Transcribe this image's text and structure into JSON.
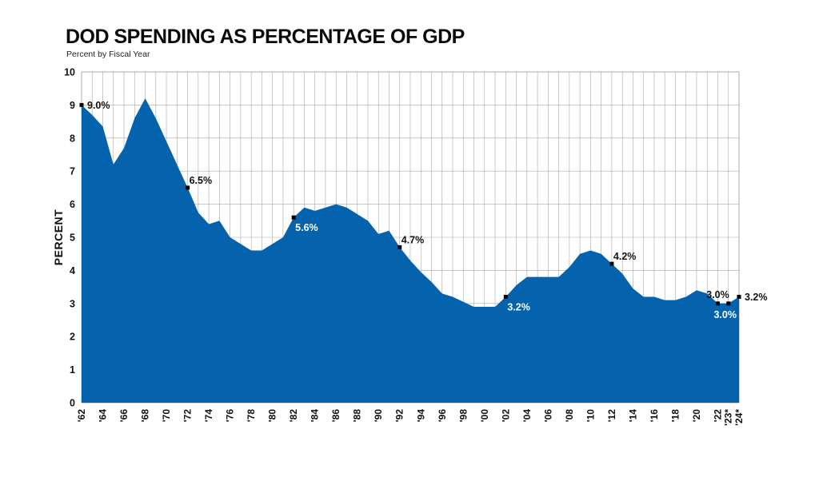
{
  "title": "DOD SPENDING AS PERCENTAGE OF GDP",
  "subtitle": "Percent by Fiscal Year",
  "chart_data": {
    "type": "area",
    "ylabel": "PERCENT",
    "xlabel": "",
    "ylim": [
      0,
      10
    ],
    "yticks": [
      0,
      1,
      2,
      3,
      4,
      5,
      6,
      7,
      8,
      9,
      10
    ],
    "grid": true,
    "fill_color": "#0563ad",
    "x": [
      1962,
      1963,
      1964,
      1965,
      1966,
      1967,
      1968,
      1969,
      1970,
      1971,
      1972,
      1973,
      1974,
      1975,
      1976,
      1977,
      1978,
      1979,
      1980,
      1981,
      1982,
      1983,
      1984,
      1985,
      1986,
      1987,
      1988,
      1989,
      1990,
      1991,
      1992,
      1993,
      1994,
      1995,
      1996,
      1997,
      1998,
      1999,
      2000,
      2001,
      2002,
      2003,
      2004,
      2005,
      2006,
      2007,
      2008,
      2009,
      2010,
      2011,
      2012,
      2013,
      2014,
      2015,
      2016,
      2017,
      2018,
      2019,
      2020,
      2021,
      2022,
      2023,
      2024
    ],
    "values": [
      9.0,
      8.7,
      8.35,
      7.2,
      7.7,
      8.6,
      9.2,
      8.6,
      7.9,
      7.2,
      6.5,
      5.75,
      5.4,
      5.5,
      5.0,
      4.8,
      4.6,
      4.6,
      4.8,
      5.0,
      5.6,
      5.9,
      5.8,
      5.9,
      6.0,
      5.9,
      5.7,
      5.5,
      5.1,
      5.2,
      4.7,
      4.3,
      3.95,
      3.65,
      3.3,
      3.2,
      3.05,
      2.9,
      2.9,
      2.9,
      3.2,
      3.55,
      3.8,
      3.8,
      3.8,
      3.8,
      4.1,
      4.5,
      4.6,
      4.5,
      4.2,
      3.9,
      3.45,
      3.2,
      3.2,
      3.1,
      3.1,
      3.2,
      3.4,
      3.3,
      3.0,
      3.0,
      3.2
    ],
    "xtick_labels": [
      {
        "x": 1962,
        "label": "'62"
      },
      {
        "x": 1964,
        "label": "'64"
      },
      {
        "x": 1966,
        "label": "'66"
      },
      {
        "x": 1968,
        "label": "'68"
      },
      {
        "x": 1970,
        "label": "'70"
      },
      {
        "x": 1972,
        "label": "'72"
      },
      {
        "x": 1974,
        "label": "'74"
      },
      {
        "x": 1976,
        "label": "'76"
      },
      {
        "x": 1978,
        "label": "'78"
      },
      {
        "x": 1980,
        "label": "'80"
      },
      {
        "x": 1982,
        "label": "'82"
      },
      {
        "x": 1984,
        "label": "'84"
      },
      {
        "x": 1986,
        "label": "'86"
      },
      {
        "x": 1988,
        "label": "'88"
      },
      {
        "x": 1990,
        "label": "'90"
      },
      {
        "x": 1992,
        "label": "'92"
      },
      {
        "x": 1994,
        "label": "'94"
      },
      {
        "x": 1996,
        "label": "'96"
      },
      {
        "x": 1998,
        "label": "'98"
      },
      {
        "x": 2000,
        "label": "'00"
      },
      {
        "x": 2002,
        "label": "'02"
      },
      {
        "x": 2004,
        "label": "'04"
      },
      {
        "x": 2006,
        "label": "'06"
      },
      {
        "x": 2008,
        "label": "'08"
      },
      {
        "x": 2010,
        "label": "'10"
      },
      {
        "x": 2012,
        "label": "'12"
      },
      {
        "x": 2014,
        "label": "'14"
      },
      {
        "x": 2016,
        "label": "'16"
      },
      {
        "x": 2018,
        "label": "'18"
      },
      {
        "x": 2020,
        "label": "'20"
      },
      {
        "x": 2022,
        "label": "'22"
      },
      {
        "x": 2023,
        "label": "'23*"
      },
      {
        "x": 2024,
        "label": "'24*"
      }
    ],
    "annotations": [
      {
        "x": 1962,
        "y": 9.0,
        "label": "9.0%",
        "color": "#111111",
        "pos": "right"
      },
      {
        "x": 1972,
        "y": 6.5,
        "label": "6.5%",
        "color": "#111111",
        "pos": "above-right"
      },
      {
        "x": 1982,
        "y": 5.6,
        "label": "5.6%",
        "color": "#ffffff",
        "pos": "below-right"
      },
      {
        "x": 1992,
        "y": 4.7,
        "label": "4.7%",
        "color": "#111111",
        "pos": "above-right"
      },
      {
        "x": 2002,
        "y": 3.2,
        "label": "3.2%",
        "color": "#ffffff",
        "pos": "below-right"
      },
      {
        "x": 2012,
        "y": 4.2,
        "label": "4.2%",
        "color": "#111111",
        "pos": "above-right"
      },
      {
        "x": 2022,
        "y": 3.0,
        "label": "3.0%",
        "color": "#111111",
        "pos": "above"
      },
      {
        "x": 2023,
        "y": 3.0,
        "label": "3.0%",
        "color": "#ffffff",
        "pos": "below-left"
      },
      {
        "x": 2024,
        "y": 3.2,
        "label": "3.2%",
        "color": "#111111",
        "pos": "right"
      }
    ]
  }
}
